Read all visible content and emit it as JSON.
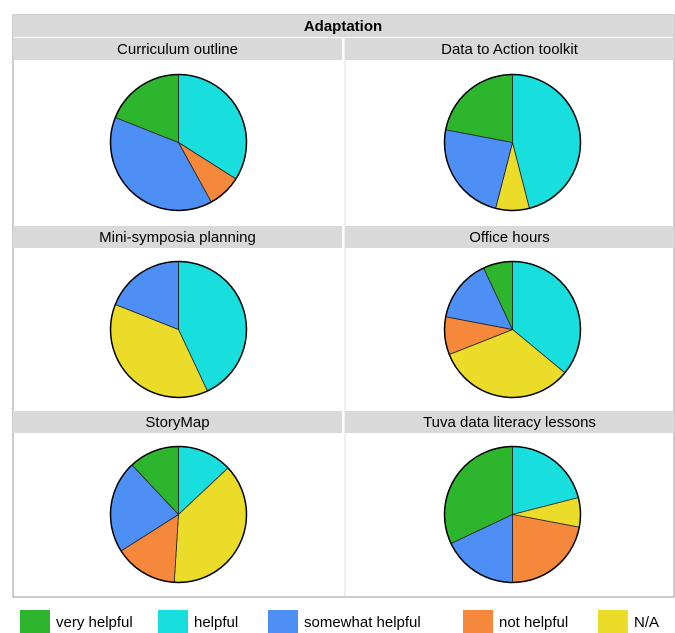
{
  "chart_data": {
    "type": "pie",
    "title": "Adaptation",
    "categories": [
      "very helpful",
      "helpful",
      "somewhat helpful",
      "not helpful",
      "N/A"
    ],
    "colors": [
      "#2db52d",
      "#19dede",
      "#4d8ff5",
      "#f5883a",
      "#ebdc2a"
    ],
    "panels": [
      {
        "title": "Curriculum outline",
        "values": [
          19,
          34,
          39,
          8,
          0
        ]
      },
      {
        "title": "Data to Action toolkit",
        "values": [
          22,
          46,
          24,
          0,
          8
        ]
      },
      {
        "title": "Mini-symposia planning",
        "values": [
          0,
          43,
          19,
          0,
          38
        ]
      },
      {
        "title": "Office hours",
        "values": [
          7,
          36,
          15,
          9,
          33
        ]
      },
      {
        "title": "StoryMap",
        "values": [
          12,
          13,
          22,
          15,
          38
        ]
      },
      {
        "title": "Tuva data literacy lessons",
        "values": [
          32,
          21,
          18,
          22,
          7
        ]
      }
    ]
  }
}
